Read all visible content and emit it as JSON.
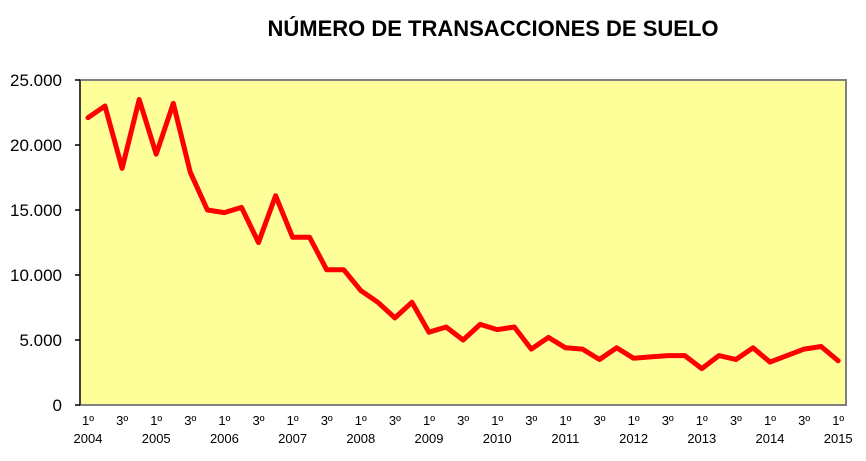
{
  "chart_data": {
    "type": "line",
    "title": "NÚMERO DE TRANSACCIONES DE SUELO",
    "xlabel": "",
    "ylabel": "",
    "ylim": [
      0,
      25000
    ],
    "yticks": [
      "0",
      "5.000",
      "10.000",
      "15.000",
      "20.000",
      "25.000"
    ],
    "ytick_values": [
      0,
      5000,
      10000,
      15000,
      20000,
      25000
    ],
    "x_tick_labels": [
      {
        "quarter": "1º",
        "year": "2004"
      },
      {
        "quarter": "3º",
        "year": ""
      },
      {
        "quarter": "1º",
        "year": "2005"
      },
      {
        "quarter": "3º",
        "year": ""
      },
      {
        "quarter": "1º",
        "year": "2006"
      },
      {
        "quarter": "3º",
        "year": ""
      },
      {
        "quarter": "1º",
        "year": "2007"
      },
      {
        "quarter": "3º",
        "year": ""
      },
      {
        "quarter": "1º",
        "year": "2008"
      },
      {
        "quarter": "3º",
        "year": ""
      },
      {
        "quarter": "1º",
        "year": "2009"
      },
      {
        "quarter": "3º",
        "year": ""
      },
      {
        "quarter": "1º",
        "year": "2010"
      },
      {
        "quarter": "3º",
        "year": ""
      },
      {
        "quarter": "1º",
        "year": "2011"
      },
      {
        "quarter": "3º",
        "year": ""
      },
      {
        "quarter": "1º",
        "year": "2012"
      },
      {
        "quarter": "3º",
        "year": ""
      },
      {
        "quarter": "1º",
        "year": "2013"
      },
      {
        "quarter": "3º",
        "year": ""
      },
      {
        "quarter": "1º",
        "year": "2014"
      },
      {
        "quarter": "3º",
        "year": ""
      },
      {
        "quarter": "1º",
        "year": "2015"
      }
    ],
    "x": [
      "2004Q1",
      "2004Q2",
      "2004Q3",
      "2004Q4",
      "2005Q1",
      "2005Q2",
      "2005Q3",
      "2005Q4",
      "2006Q1",
      "2006Q2",
      "2006Q3",
      "2006Q4",
      "2007Q1",
      "2007Q2",
      "2007Q3",
      "2007Q4",
      "2008Q1",
      "2008Q2",
      "2008Q3",
      "2008Q4",
      "2009Q1",
      "2009Q2",
      "2009Q3",
      "2009Q4",
      "2010Q1",
      "2010Q2",
      "2010Q3",
      "2010Q4",
      "2011Q1",
      "2011Q2",
      "2011Q3",
      "2011Q4",
      "2012Q1",
      "2012Q2",
      "2012Q3",
      "2012Q4",
      "2013Q1",
      "2013Q2",
      "2013Q3",
      "2013Q4",
      "2014Q1",
      "2014Q2",
      "2014Q3",
      "2014Q4",
      "2015Q1"
    ],
    "series": [
      {
        "color": "#ff0000",
        "values": [
          22100,
          23000,
          18200,
          23500,
          19300,
          23200,
          17900,
          15000,
          14800,
          15200,
          12500,
          16100,
          12900,
          12900,
          10400,
          10400,
          8800,
          7900,
          6700,
          7900,
          5600,
          6000,
          5000,
          6200,
          5800,
          6000,
          4300,
          5200,
          4400,
          4300,
          3500,
          4400,
          3600,
          3700,
          3800,
          3800,
          2800,
          3800,
          3500,
          4400,
          3300,
          3800,
          4300,
          4500,
          3400
        ]
      }
    ],
    "grid": false,
    "legend": "none",
    "plot_background": "#ffff99"
  }
}
